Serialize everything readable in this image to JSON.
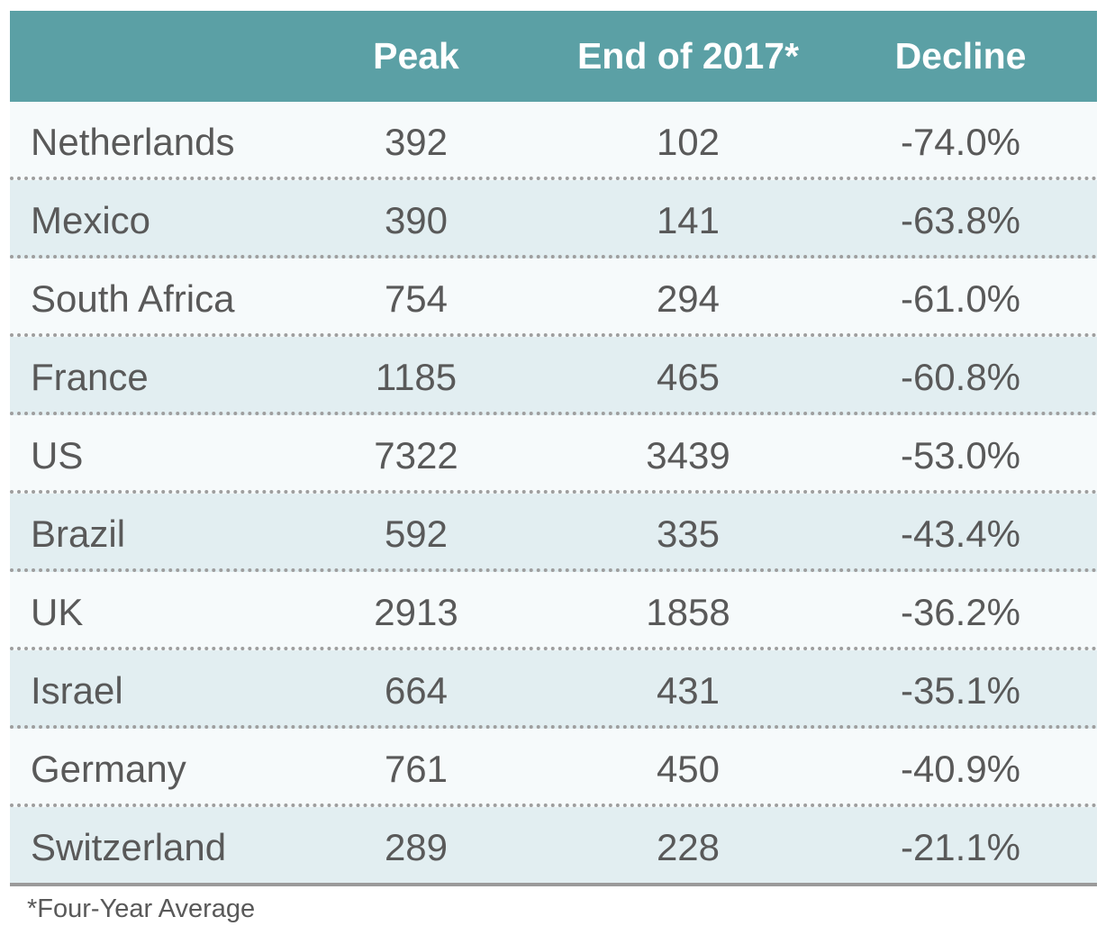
{
  "chart_data": {
    "type": "table",
    "columns": [
      "",
      "Peak",
      "End of 2017*",
      "Decline"
    ],
    "rows": [
      {
        "country": "Netherlands",
        "peak": "392",
        "end_2017": "102",
        "decline": "-74.0%"
      },
      {
        "country": "Mexico",
        "peak": "390",
        "end_2017": "141",
        "decline": "-63.8%"
      },
      {
        "country": "South Africa",
        "peak": "754",
        "end_2017": "294",
        "decline": "-61.0%"
      },
      {
        "country": "France",
        "peak": "1185",
        "end_2017": "465",
        "decline": "-60.8%"
      },
      {
        "country": "US",
        "peak": "7322",
        "end_2017": "3439",
        "decline": "-53.0%"
      },
      {
        "country": "Brazil",
        "peak": "592",
        "end_2017": "335",
        "decline": "-43.4%"
      },
      {
        "country": "UK",
        "peak": "2913",
        "end_2017": "1858",
        "decline": "-36.2%"
      },
      {
        "country": "Israel",
        "peak": "664",
        "end_2017": "431",
        "decline": "-35.1%"
      },
      {
        "country": "Germany",
        "peak": "761",
        "end_2017": "450",
        "decline": "-40.9%"
      },
      {
        "country": "Switzerland",
        "peak": "289",
        "end_2017": "228",
        "decline": "-21.1%"
      }
    ],
    "footnote": "*Four-Year Average"
  },
  "colors": {
    "header_bg": "#5ba0a5",
    "header_text": "#ffffff",
    "shaded_row": "#e2eef1",
    "light_row": "#f6fafb",
    "body_text": "#595959",
    "divider": "#9e9e9e"
  }
}
